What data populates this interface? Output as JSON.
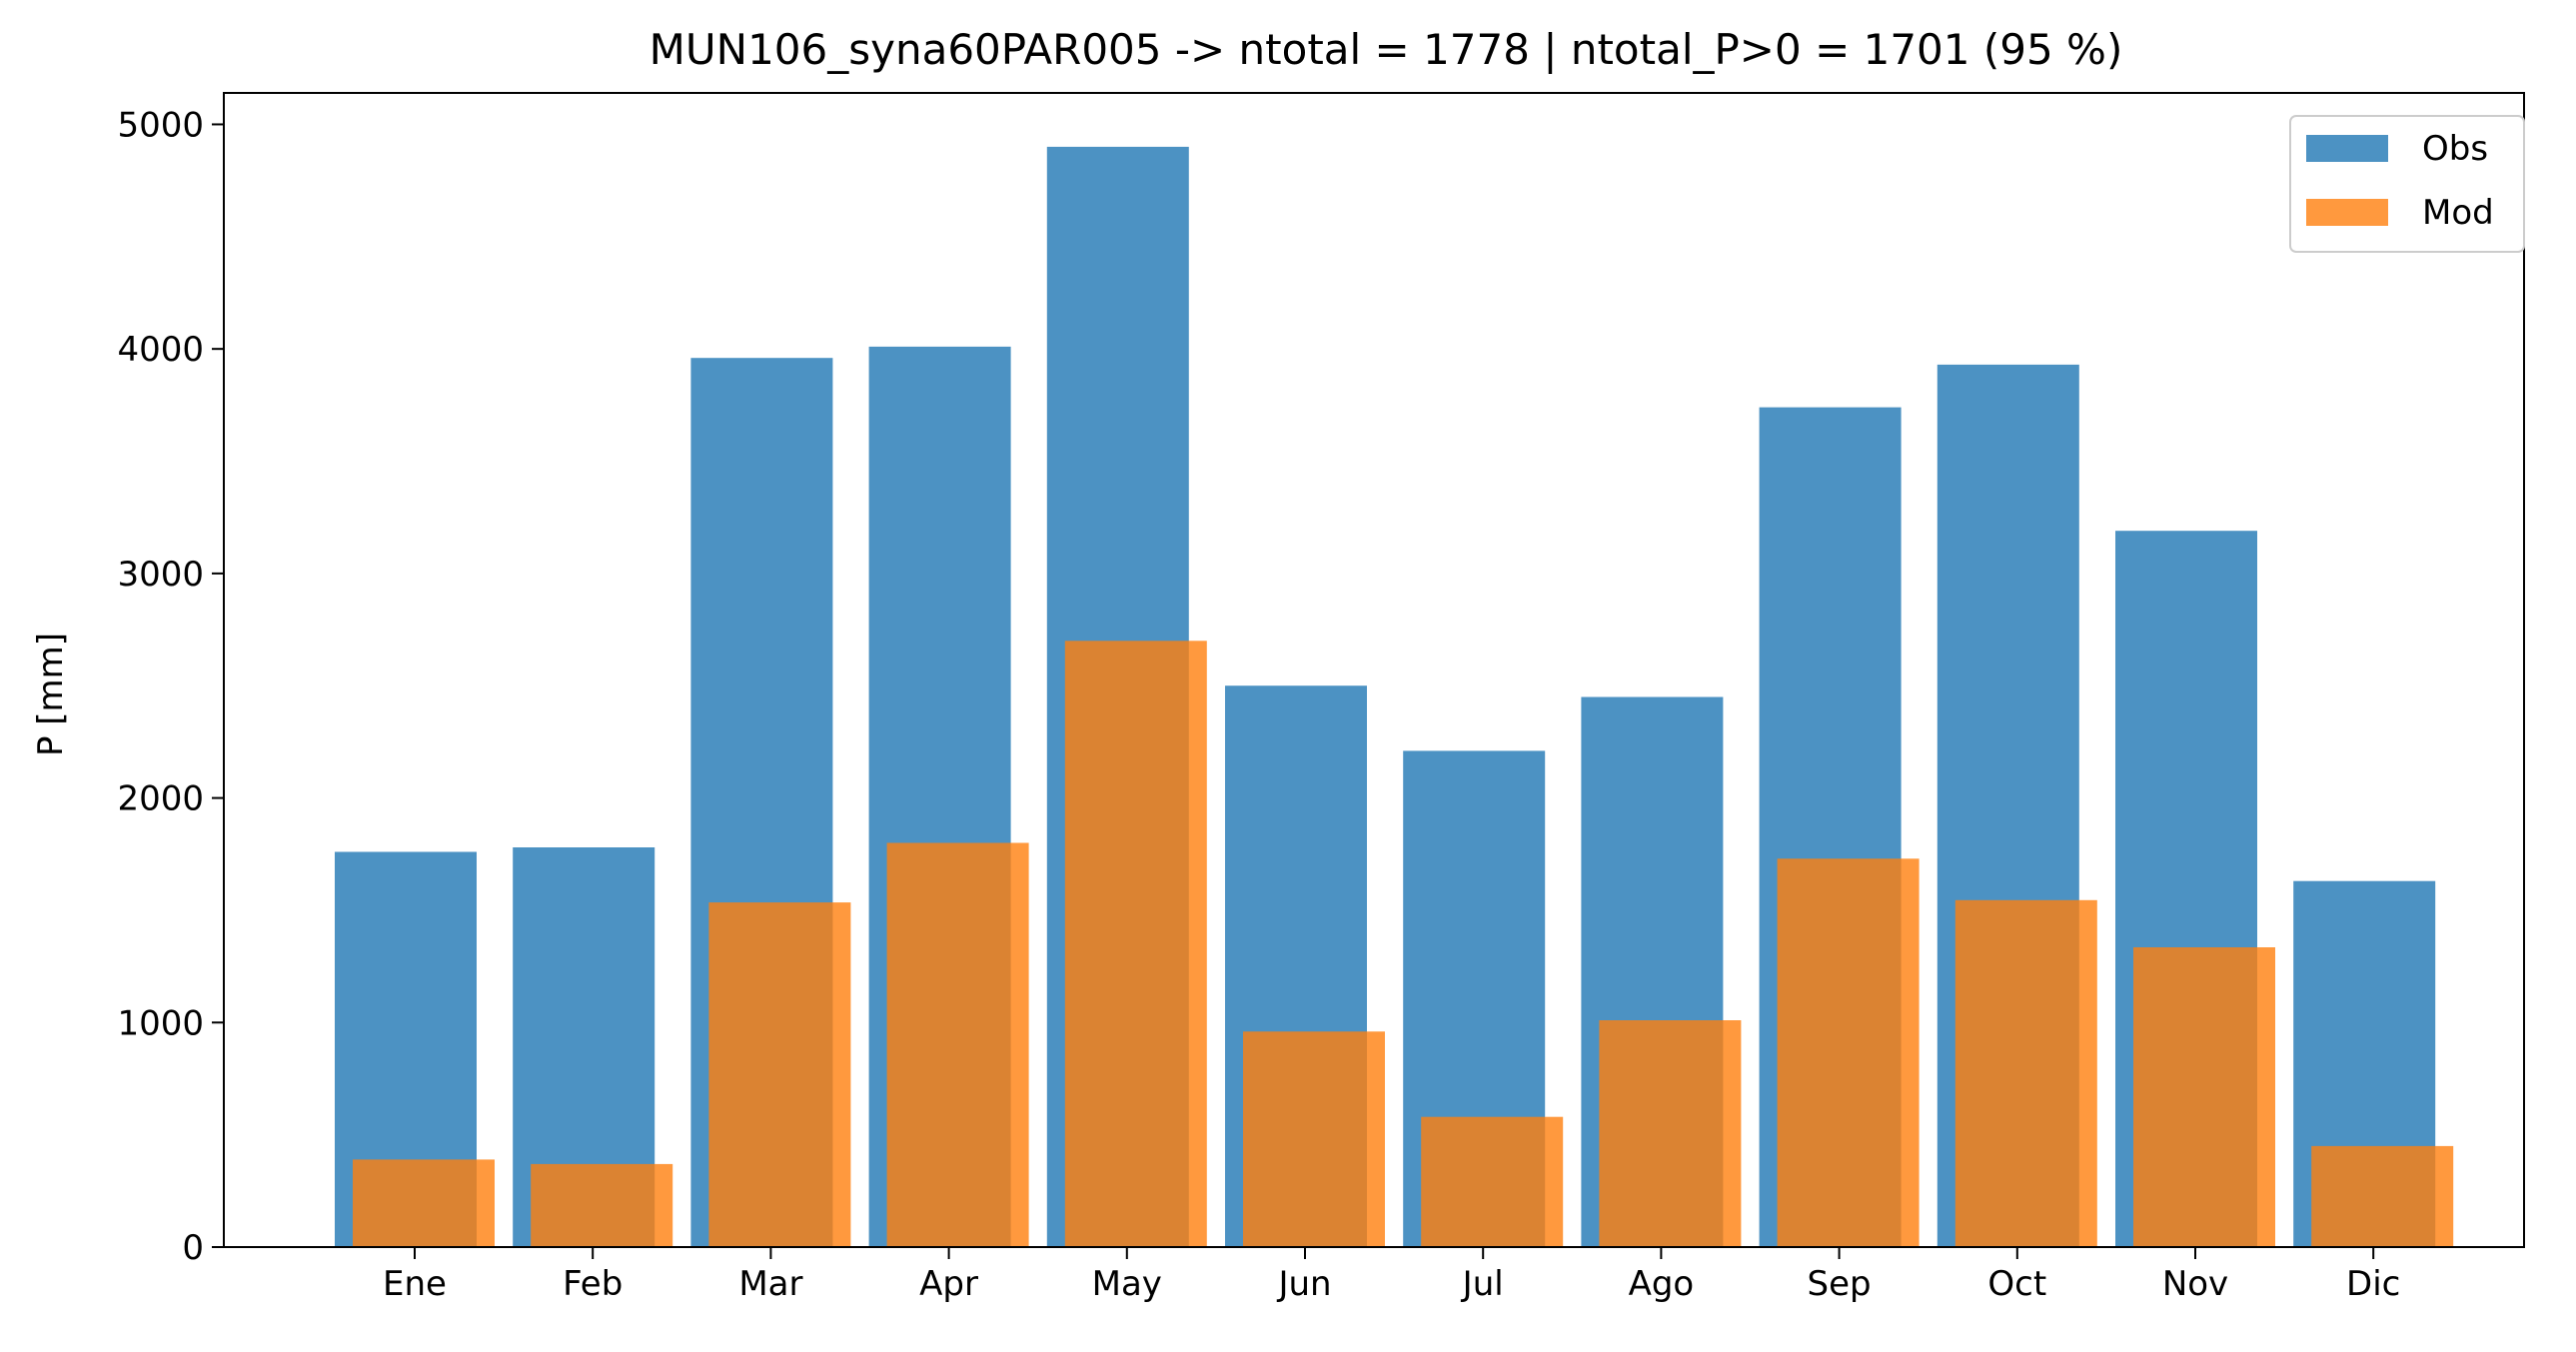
{
  "chart_data": {
    "type": "bar",
    "title": "MUN106_syna60PAR005 -> ntotal = 1778 | ntotal_P>0 = 1701 (95 %)",
    "xlabel": "",
    "ylabel": "P [mm]",
    "categories": [
      "Ene",
      "Feb",
      "Mar",
      "Apr",
      "May",
      "Jun",
      "Jul",
      "Ago",
      "Sep",
      "Oct",
      "Nov",
      "Dic"
    ],
    "series": [
      {
        "name": "Obs",
        "color": "#1f77b4",
        "opacity": 0.8,
        "values": [
          1760,
          1780,
          3960,
          4010,
          4900,
          2500,
          2210,
          2450,
          3740,
          3930,
          3190,
          1630
        ]
      },
      {
        "name": "Mod",
        "color": "#ff7f0e",
        "opacity": 0.8,
        "values": [
          390,
          370,
          1535,
          1800,
          2700,
          960,
          580,
          1010,
          1730,
          1545,
          1335,
          450
        ]
      }
    ],
    "ylim": [
      0,
      5140
    ],
    "yticks": [
      0,
      1000,
      2000,
      3000,
      4000,
      5000
    ],
    "grid": false,
    "legend_position": "top-right"
  }
}
